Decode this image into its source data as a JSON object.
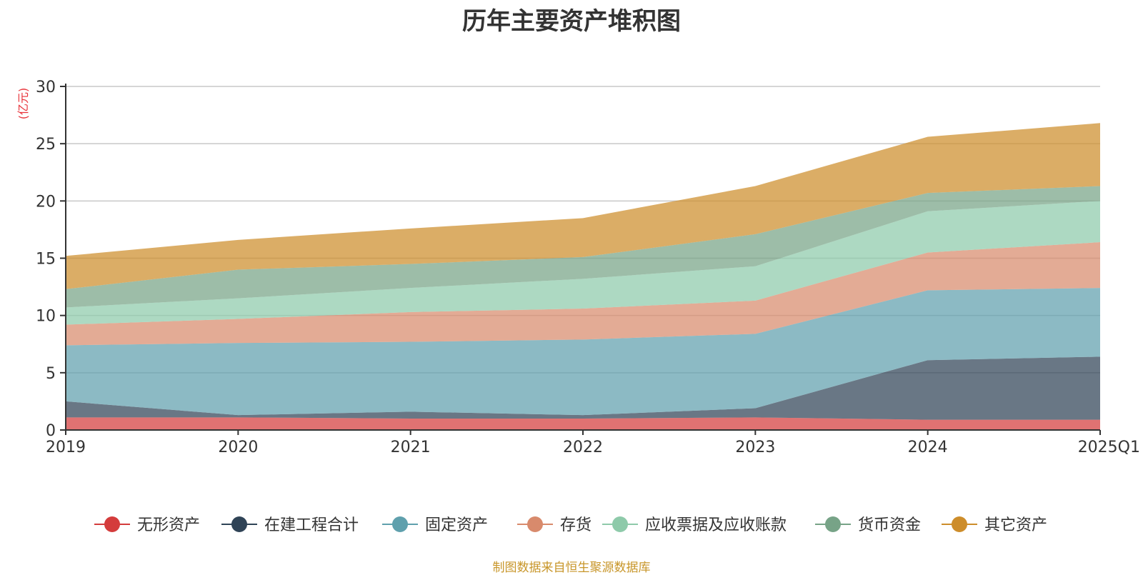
{
  "chart_data": {
    "type": "area",
    "stacked": true,
    "title": "历年主要资产堆积图",
    "unit": "(亿元)",
    "categories": [
      "2019",
      "2020",
      "2021",
      "2022",
      "2023",
      "2024",
      "2025Q1"
    ],
    "ylim": [
      0,
      30
    ],
    "yticks": [
      0,
      5,
      10,
      15,
      20,
      25,
      30
    ],
    "grid": true,
    "legend_position": "bottom",
    "series": [
      {
        "name": "无形资产",
        "color": "#d43c3c",
        "values": [
          1.1,
          1.1,
          1.0,
          1.0,
          1.1,
          0.9,
          0.9
        ]
      },
      {
        "name": "在建工程合计",
        "color": "#2f4356",
        "values": [
          1.4,
          0.2,
          0.6,
          0.3,
          0.8,
          5.2,
          5.5
        ]
      },
      {
        "name": "固定资产",
        "color": "#5fa0ad",
        "values": [
          4.9,
          6.3,
          6.1,
          6.6,
          6.5,
          6.1,
          6.0
        ]
      },
      {
        "name": "存货",
        "color": "#d88a6c",
        "values": [
          1.8,
          2.1,
          2.6,
          2.7,
          2.9,
          3.3,
          4.0
        ]
      },
      {
        "name": "应收票据及应收账款",
        "color": "#8ecaaa",
        "values": [
          1.5,
          1.8,
          2.1,
          2.6,
          3.0,
          3.6,
          3.6
        ]
      },
      {
        "name": "货币资金",
        "color": "#77a387",
        "values": [
          1.6,
          2.5,
          2.1,
          1.9,
          2.8,
          1.6,
          1.3
        ]
      },
      {
        "name": "其它资产",
        "color": "#cd8d2b",
        "values": [
          2.9,
          2.6,
          3.1,
          3.4,
          4.2,
          4.9,
          5.5
        ]
      }
    ]
  },
  "footer": {
    "source": "制图数据来自恒生聚源数据库"
  }
}
